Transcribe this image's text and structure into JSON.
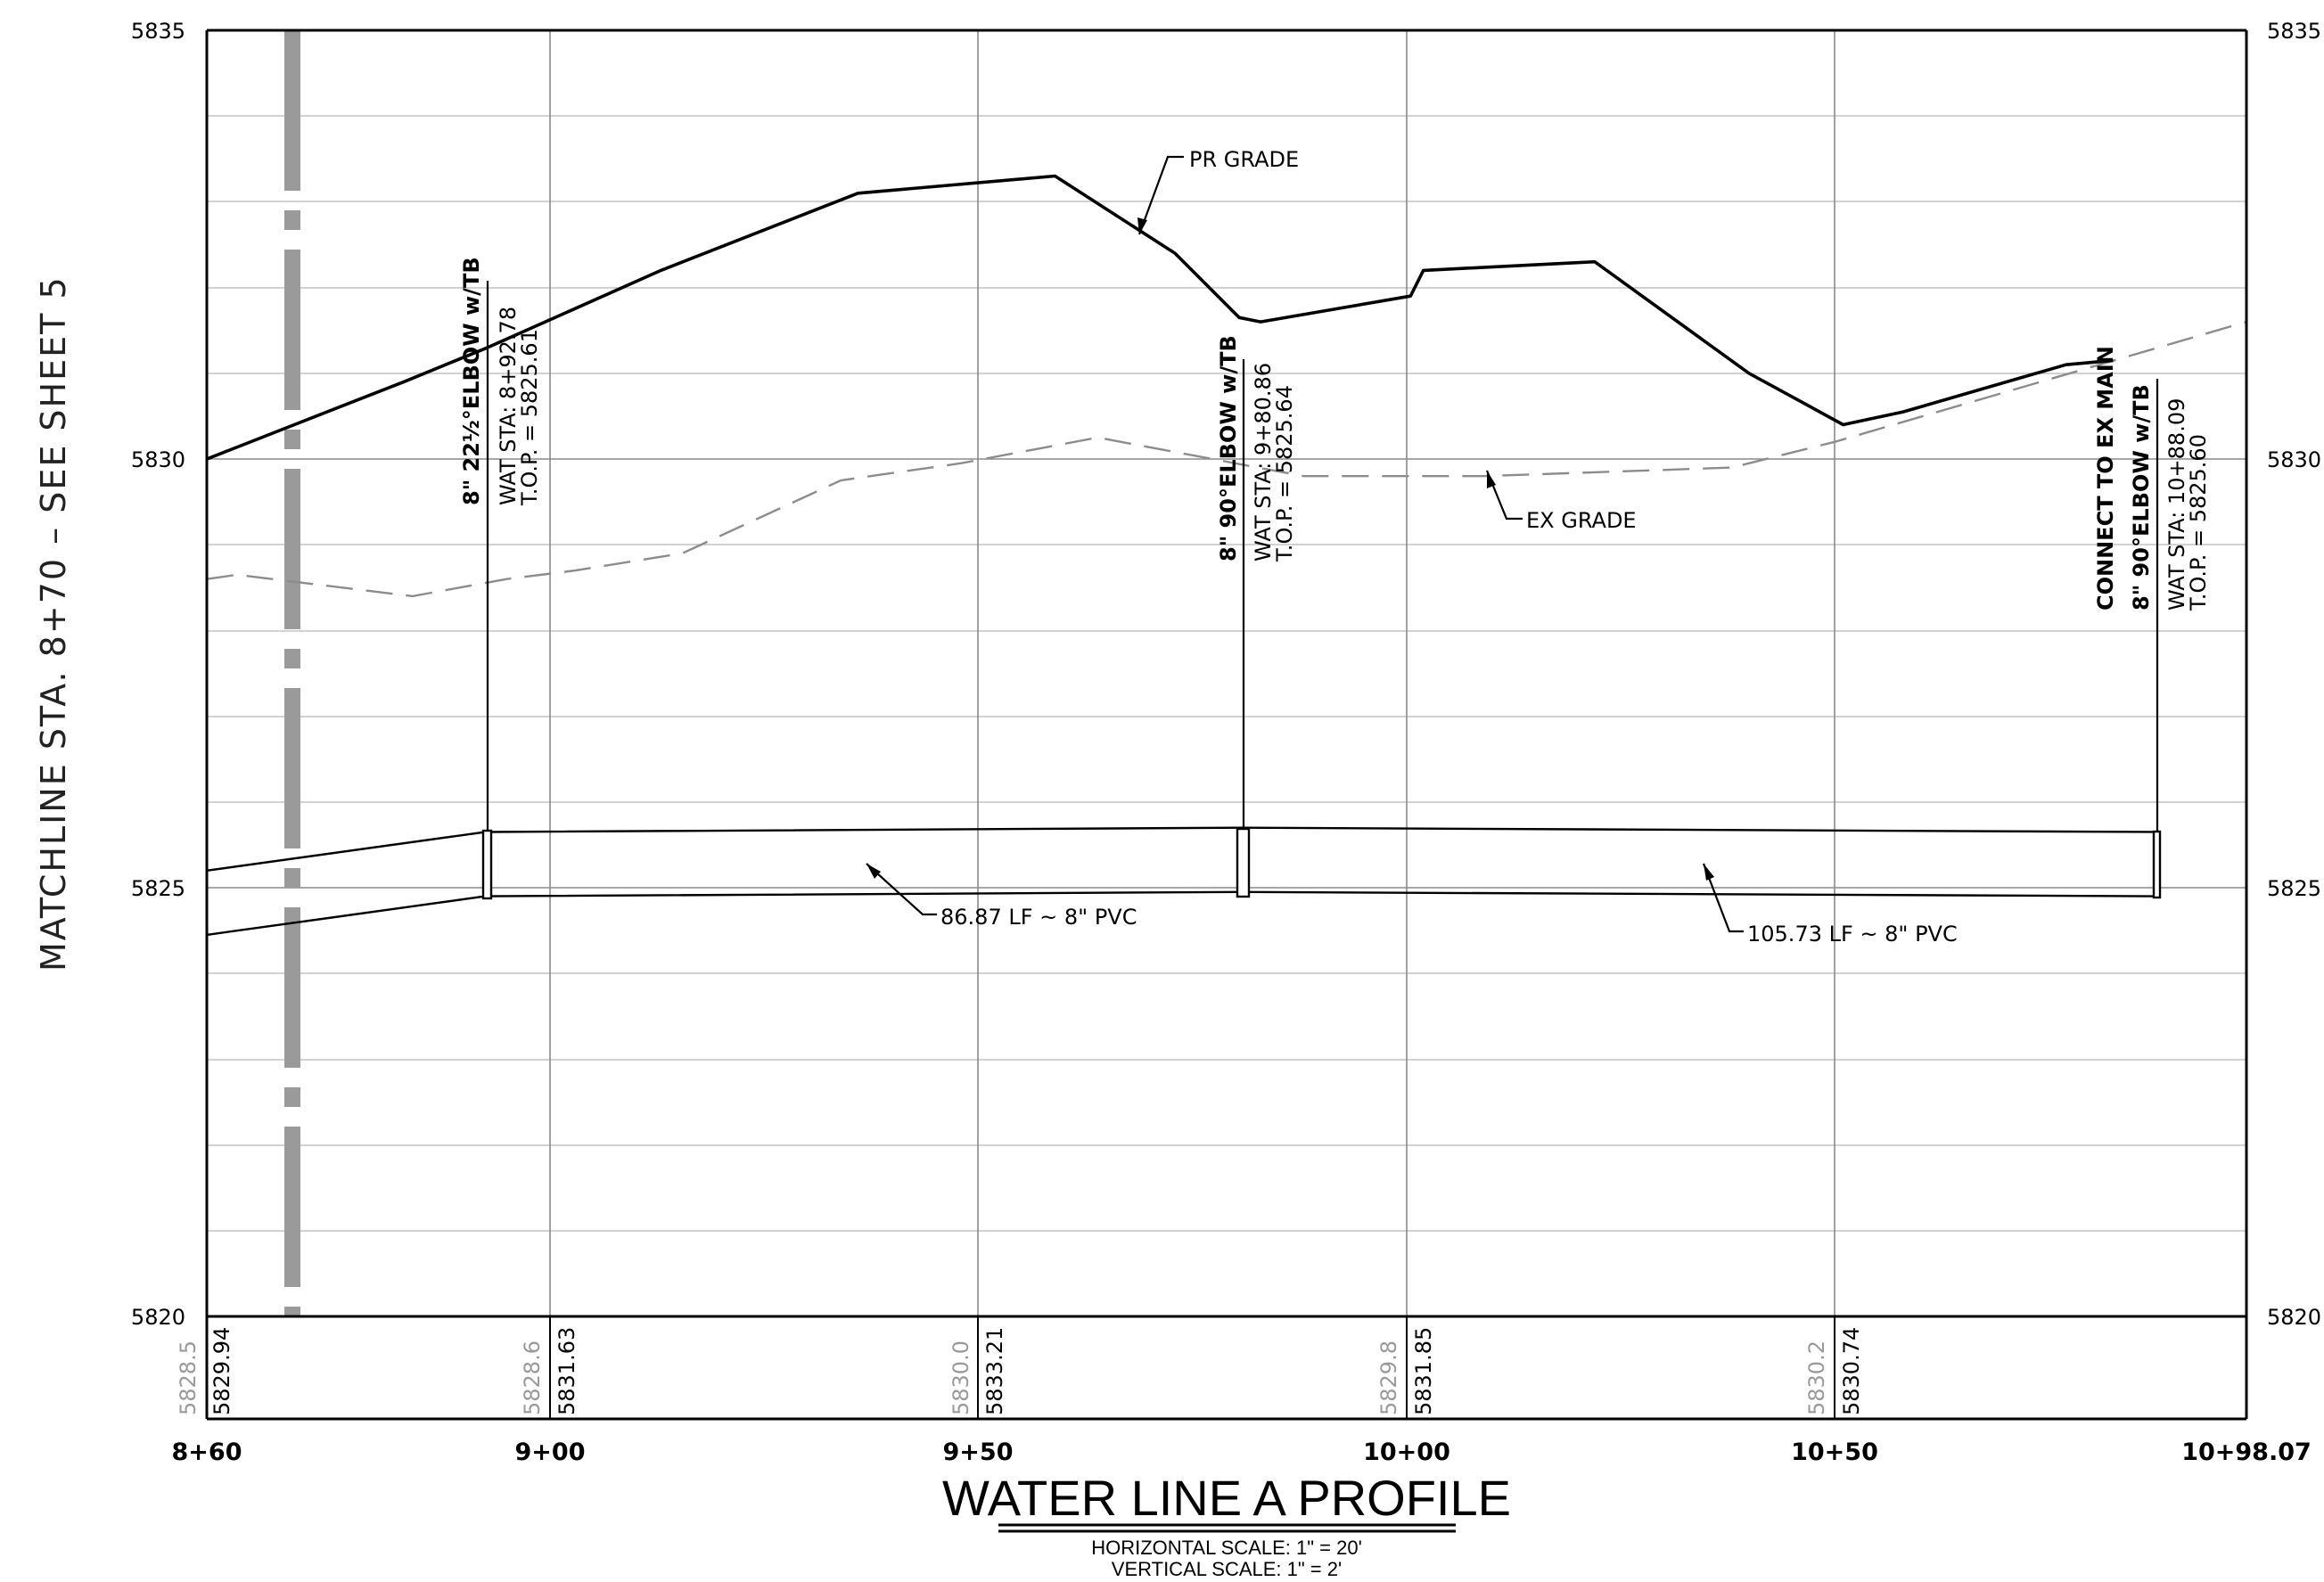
{
  "title": "WATER LINE A PROFILE",
  "scales": {
    "horizontal": "HORIZONTAL SCALE:  1\" = 20'",
    "vertical": "VERTICAL SCALE: 1\" = 2'"
  },
  "matchline": "MATCHLINE STA. 8+70 – SEE SHEET 5",
  "elevations": {
    "left": [
      "5835",
      "5830",
      "5825",
      "5820"
    ],
    "right": [
      "5835",
      "5830",
      "5825",
      "5820"
    ]
  },
  "stations": [
    "8+60",
    "9+00",
    "9+50",
    "10+00",
    "10+50",
    "10+98.07"
  ],
  "grade_band": [
    {
      "existing": "5828.5",
      "proposed": "5829.94"
    },
    {
      "existing": "5828.6",
      "proposed": "5831.63"
    },
    {
      "existing": "5830.0",
      "proposed": "5833.21"
    },
    {
      "existing": "5829.8",
      "proposed": "5831.85"
    },
    {
      "existing": "5830.2",
      "proposed": "5830.74"
    }
  ],
  "labels": {
    "pr_grade": "PR GRADE",
    "ex_grade": "EX GRADE",
    "pipe_run_1": "86.87 LF ~ 8\" PVC",
    "pipe_run_2": "105.73 LF ~ 8\" PVC"
  },
  "fittings": [
    {
      "line1": "8\" 22½°ELBOW w/TB",
      "line2": "WAT STA: 8+92.78",
      "line3": "T.O.P. = 5825.61"
    },
    {
      "line1": "8\" 90°ELBOW w/TB",
      "line2": "WAT STA: 9+80.86",
      "line3": "T.O.P. = 5825.64"
    },
    {
      "line0": "CONNECT TO EX MAIN",
      "line1": "8\" 90°ELBOW w/TB",
      "line2": "WAT STA: 10+88.09",
      "line3": "T.O.P. = 5825.60"
    }
  ],
  "chart_data": {
    "type": "line",
    "title": "WATER LINE A PROFILE",
    "xlabel": "",
    "ylabel": "",
    "x_range": [
      860,
      1098.07
    ],
    "y_range": [
      5820,
      5835
    ],
    "x_ticks": [
      "8+60",
      "9+00",
      "9+50",
      "10+00",
      "10+50",
      "10+98.07"
    ],
    "y_ticks": [
      5820,
      5825,
      5830,
      5835
    ],
    "grid": true,
    "series": [
      {
        "name": "PR GRADE",
        "style": "solid",
        "points": [
          [
            860,
            5830.0
          ],
          [
            883,
            5830.9
          ],
          [
            892.78,
            5831.3
          ],
          [
            913,
            5832.2
          ],
          [
            936,
            5833.1
          ],
          [
            959,
            5833.3
          ],
          [
            973,
            5832.4
          ],
          [
            980.5,
            5831.65
          ],
          [
            983,
            5831.6
          ],
          [
            1000.5,
            5831.9
          ],
          [
            1002,
            5832.2
          ],
          [
            1022,
            5832.3
          ],
          [
            1040,
            5831.0
          ],
          [
            1051,
            5830.4
          ],
          [
            1058,
            5830.55
          ],
          [
            1077,
            5831.1
          ],
          [
            1082.5,
            5831.15
          ]
        ]
      },
      {
        "name": "EX GRADE",
        "style": "dashed",
        "points": [
          [
            860,
            5828.6
          ],
          [
            863.5,
            5828.65
          ],
          [
            884,
            5828.4
          ],
          [
            895,
            5828.6
          ],
          [
            903,
            5828.7
          ],
          [
            915.5,
            5828.9
          ],
          [
            934,
            5829.75
          ],
          [
            948,
            5829.95
          ],
          [
            964,
            5830.25
          ],
          [
            988,
            5829.8
          ],
          [
            1009,
            5829.8
          ],
          [
            1038,
            5829.9
          ],
          [
            1050,
            5830.2
          ],
          [
            1098.07,
            5831.6
          ]
        ]
      },
      {
        "name": "",
        "style": "pipe-top",
        "points": [
          [
            860,
            5825.2
          ],
          [
            892.5,
            5825.65
          ],
          [
            980.5,
            5825.7
          ],
          [
            1088,
            5825.65
          ]
        ]
      },
      {
        "name": "",
        "style": "pipe-bottom",
        "points": [
          [
            860,
            5824.45
          ],
          [
            892.5,
            5824.9
          ],
          [
            980.5,
            5824.95
          ],
          [
            1088,
            5824.9
          ]
        ]
      }
    ]
  }
}
